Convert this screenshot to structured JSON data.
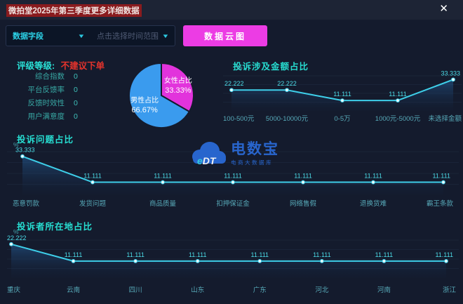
{
  "header": {
    "title": "微拍堂2025年第三季度更多详细数据",
    "close_icon": "✕"
  },
  "toolbar": {
    "field_select_value": "数据字段",
    "time_select_placeholder": "点击选择时间范围",
    "cloud_button_label": "数据云图"
  },
  "rating": {
    "label": "评级等级:",
    "value": "不建议下单",
    "metrics": [
      {
        "label": "综合指数",
        "value": "0"
      },
      {
        "label": "平台反馈率",
        "value": "0"
      },
      {
        "label": "反馈时效性",
        "value": "0"
      },
      {
        "label": "用户满意度",
        "value": "0"
      }
    ]
  },
  "watermark": {
    "logo_text": "eDT",
    "name": "电数宝",
    "subtitle": "电商大数据库"
  },
  "colors": {
    "accent_cyan": "#2cd3e8",
    "button_magenta": "#ec3ce4",
    "rating_red": "#e5332c",
    "chart_title_teal": "#27ddd1",
    "line_cyan": "#3ecfe9",
    "pie_magenta": "#e233dc",
    "pie_blue": "#3a9bee",
    "watermark_blue": "#2a6ad6",
    "title_highlight_red": "#8a1b1e"
  },
  "chart_data": [
    {
      "type": "pie",
      "title": "",
      "labels": [
        "女性占比",
        "男性占比"
      ],
      "values": [
        33.33,
        66.67
      ],
      "unit": "%",
      "colors": [
        "#e233dc",
        "#3a9bee"
      ],
      "legend_position": "none"
    },
    {
      "type": "area",
      "title": "投诉涉及金额占比",
      "unit": "%",
      "categories": [
        "100-500元",
        "5000-10000元",
        "0-5万",
        "1000元-5000元",
        "未选择金额"
      ],
      "values": [
        22.222,
        22.222,
        11.111,
        11.111,
        33.333
      ],
      "ylim": [
        0,
        37
      ],
      "grid": true,
      "legend_position": "none"
    },
    {
      "type": "area",
      "title": "投诉问题占比",
      "unit": "%",
      "categories": [
        "恶意罚款",
        "发货问题",
        "商品质量",
        "扣押保证金",
        "网络售假",
        "退换货难",
        "霸王条款"
      ],
      "values": [
        33.333,
        11.111,
        11.111,
        11.111,
        11.111,
        11.111,
        11.111
      ],
      "ylim": [
        0,
        37
      ],
      "grid": true,
      "legend_position": "none"
    },
    {
      "type": "area",
      "title": "投诉者所在地占比",
      "unit": "%",
      "categories": [
        "重庆",
        "云南",
        "四川",
        "山东",
        "广东",
        "河北",
        "河南",
        "浙江"
      ],
      "values": [
        22.222,
        11.111,
        11.111,
        11.111,
        11.111,
        11.111,
        11.111,
        11.111
      ],
      "ylim": [
        0,
        25
      ],
      "grid": true,
      "legend_position": "none"
    }
  ]
}
